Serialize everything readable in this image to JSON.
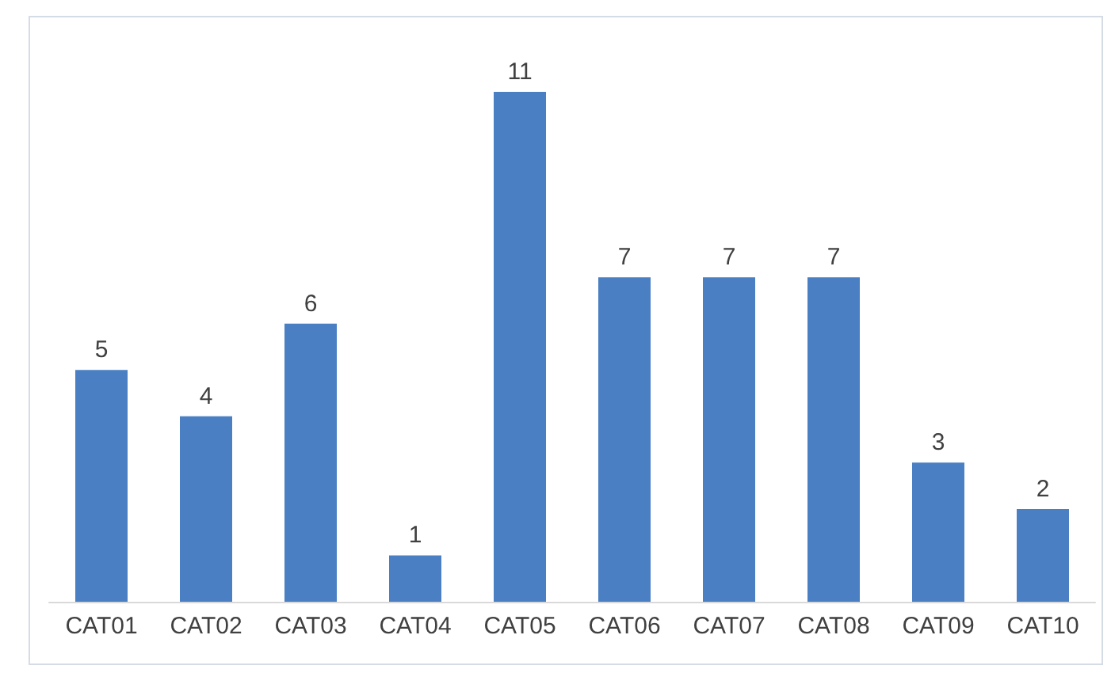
{
  "chart_data": {
    "type": "bar",
    "categories": [
      "CAT01",
      "CAT02",
      "CAT03",
      "CAT04",
      "CAT05",
      "CAT06",
      "CAT07",
      "CAT08",
      "CAT09",
      "CAT10"
    ],
    "values": [
      5,
      4,
      6,
      1,
      11,
      7,
      7,
      7,
      3,
      2
    ],
    "color": "#4a7fc4",
    "data_labels": true
  }
}
